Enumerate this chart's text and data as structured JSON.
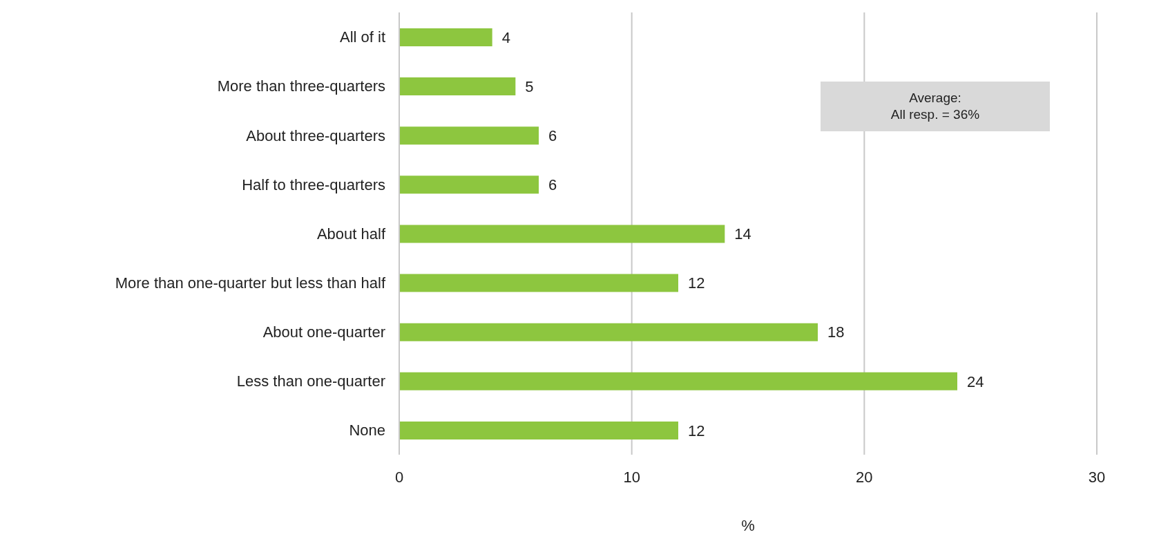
{
  "chart_data": {
    "type": "bar",
    "orientation": "horizontal",
    "xlabel": "%",
    "categories": [
      "All of it",
      "More than three-quarters",
      "About three-quarters",
      "Half to three-quarters",
      "About half",
      "More than one-quarter but less than half",
      "About one-quarter",
      "Less than one-quarter",
      "None"
    ],
    "values": [
      4,
      5,
      6,
      6,
      14,
      12,
      18,
      24,
      12
    ],
    "color": "#8dc63f",
    "xlim": [
      0,
      30
    ],
    "xticks": [
      0,
      10,
      20,
      30
    ],
    "grid": "x",
    "data_labels": true,
    "annotations": [
      "Average:\nAll resp. = 36%"
    ]
  }
}
